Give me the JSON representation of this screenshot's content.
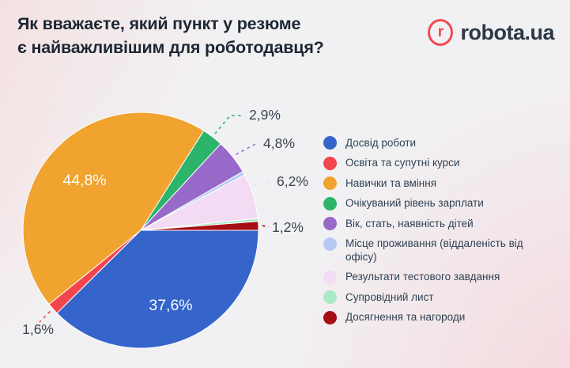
{
  "header": {
    "title_line1": "Як вважаєте, який пункт у резюме",
    "title_line2": "є найважливішим для роботодавця?",
    "logo_letter": "r",
    "logo_text": "robota.ua"
  },
  "colors": {
    "background": "#f1f1f3",
    "accent_red": "#ef4b50",
    "title_text": "#1d2733",
    "legend_text": "#2f4254",
    "callout_text": "#3a444f",
    "inside_label_text": "#ffffff"
  },
  "chart_data": {
    "type": "pie",
    "title": "Як вважаєте, який пункт у резюме є найважливішим для роботодавця?",
    "legend_position": "right",
    "start_angle_deg": 0,
    "direction": "clockwise",
    "slices": [
      {
        "label": "Досвід роботи",
        "value": 37.6,
        "display": "37,6%",
        "color": "#3565cb",
        "label_style": "inside"
      },
      {
        "label": "Освіта та супутні курси",
        "value": 1.6,
        "display": "1,6%",
        "color": "#f4454d",
        "label_style": "callout"
      },
      {
        "label": "Навички та вміння",
        "value": 44.8,
        "display": "44,8%",
        "color": "#f0a32e",
        "label_style": "inside"
      },
      {
        "label": "Очікуваний рівень зарплати",
        "value": 2.9,
        "display": "2,9%",
        "color": "#2cb56a",
        "label_style": "callout"
      },
      {
        "label": "Вік, стать, наявність дітей",
        "value": 4.8,
        "display": "4,8%",
        "color": "#9769c9",
        "label_style": "callout"
      },
      {
        "label": "Місце проживання (віддаленість від офісу)",
        "value": 0.5,
        "display": "",
        "color": "#b8c9f4",
        "label_style": "none",
        "estimated": true
      },
      {
        "label": "Результати тестового завдання",
        "value": 6.2,
        "display": "6,2%",
        "color": "#f3dbf3",
        "label_style": "callout"
      },
      {
        "label": "Супровідний лист",
        "value": 0.4,
        "display": "",
        "color": "#a9ebc6",
        "label_style": "none",
        "estimated": true
      },
      {
        "label": "Досягнення та нагороди",
        "value": 1.2,
        "display": "1,2%",
        "color": "#a60e13",
        "label_style": "callout"
      }
    ]
  }
}
